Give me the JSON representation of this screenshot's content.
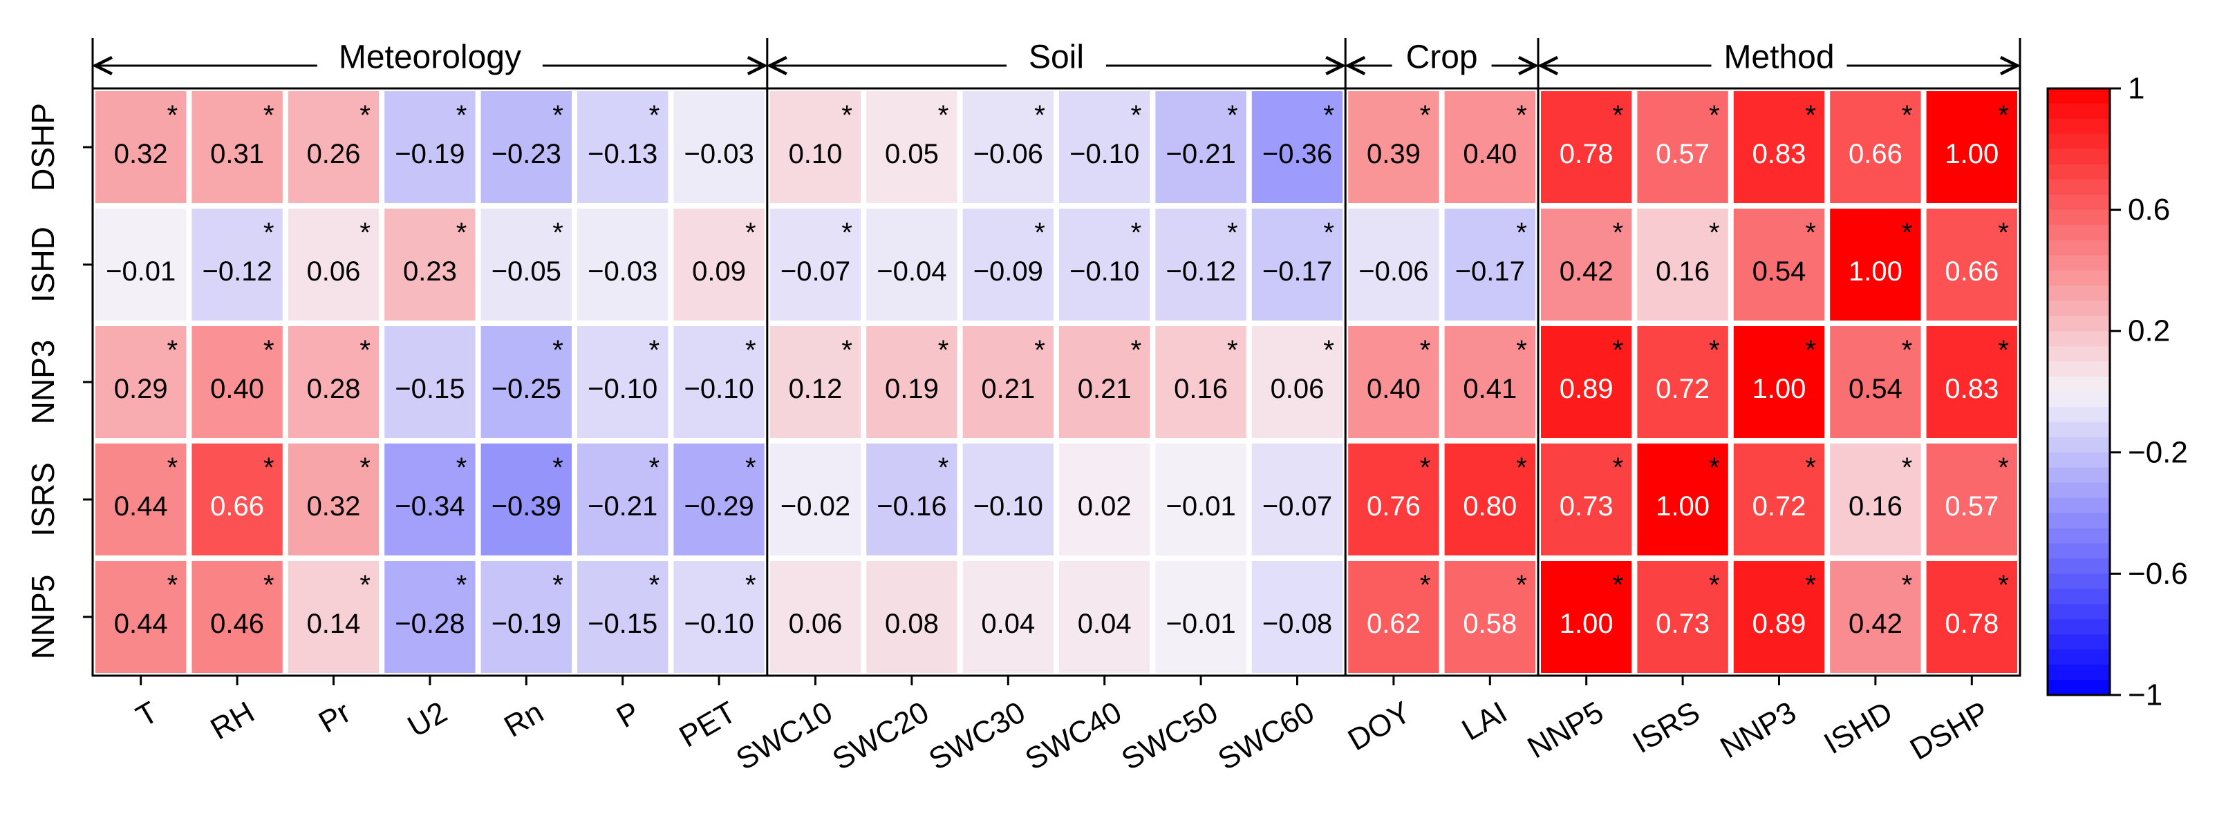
{
  "chart_data": {
    "type": "heatmap",
    "title": "",
    "rows": [
      "DSHP",
      "ISHD",
      "NNP3",
      "ISRS",
      "NNP5"
    ],
    "columns": [
      "T",
      "RH",
      "Pr",
      "U2",
      "Rn",
      "P",
      "PET",
      "SWC10",
      "SWC20",
      "SWC30",
      "SWC40",
      "SWC50",
      "SWC60",
      "DOY",
      "LAI",
      "NNP5",
      "ISRS",
      "NNP3",
      "ISHD",
      "DSHP"
    ],
    "groups": [
      {
        "label": "Meteorology",
        "start": 0,
        "end": 6
      },
      {
        "label": "Soil",
        "start": 7,
        "end": 12
      },
      {
        "label": "Crop",
        "start": 13,
        "end": 14
      },
      {
        "label": "Method",
        "start": 15,
        "end": 19
      }
    ],
    "values": [
      [
        0.32,
        0.31,
        0.26,
        -0.19,
        -0.23,
        -0.13,
        -0.03,
        0.1,
        0.05,
        -0.06,
        -0.1,
        -0.21,
        -0.36,
        0.39,
        0.4,
        0.78,
        0.57,
        0.83,
        0.66,
        1.0
      ],
      [
        -0.01,
        -0.12,
        0.06,
        0.23,
        -0.05,
        -0.03,
        0.09,
        -0.07,
        -0.04,
        -0.09,
        -0.1,
        -0.12,
        -0.17,
        -0.06,
        -0.17,
        0.42,
        0.16,
        0.54,
        1.0,
        0.66
      ],
      [
        0.29,
        0.4,
        0.28,
        -0.15,
        -0.25,
        -0.1,
        -0.1,
        0.12,
        0.19,
        0.21,
        0.21,
        0.16,
        0.06,
        0.4,
        0.41,
        0.89,
        0.72,
        1.0,
        0.54,
        0.83
      ],
      [
        0.44,
        0.66,
        0.32,
        -0.34,
        -0.39,
        -0.21,
        -0.29,
        -0.02,
        -0.16,
        -0.1,
        0.02,
        -0.01,
        -0.07,
        0.76,
        0.8,
        0.73,
        1.0,
        0.72,
        0.16,
        0.57
      ],
      [
        0.44,
        0.46,
        0.14,
        -0.28,
        -0.19,
        -0.15,
        -0.1,
        0.06,
        0.08,
        0.04,
        0.04,
        -0.01,
        -0.08,
        0.62,
        0.58,
        1.0,
        0.73,
        0.89,
        0.42,
        0.78
      ]
    ],
    "labels": [
      [
        "0.32",
        "0.31",
        "0.26",
        "−0.19",
        "−0.23",
        "−0.13",
        "−0.03",
        "0.10",
        "0.05",
        "−0.06",
        "−0.10",
        "−0.21",
        "−0.36",
        "0.39",
        "0.40",
        "0.78",
        "0.57",
        "0.83",
        "0.66",
        "1.00"
      ],
      [
        "−0.01",
        "−0.12",
        "0.06",
        "0.23",
        "−0.05",
        "−0.03",
        "0.09",
        "−0.07",
        "−0.04",
        "−0.09",
        "−0.10",
        "−0.12",
        "−0.17",
        "−0.06",
        "−0.17",
        "0.42",
        "0.16",
        "0.54",
        "1.00",
        "0.66"
      ],
      [
        "0.29",
        "0.40",
        "0.28",
        "−0.15",
        "−0.25",
        "−0.10",
        "−0.10",
        "0.12",
        "0.19",
        "0.21",
        "0.21",
        "0.16",
        "0.06",
        "0.40",
        "0.41",
        "0.89",
        "0.72",
        "1.00",
        "0.54",
        "0.83"
      ],
      [
        "0.44",
        "0.66",
        "0.32",
        "−0.34",
        "−0.39",
        "−0.21",
        "−0.29",
        "−0.02",
        "−0.16",
        "−0.10",
        "0.02",
        "−0.01",
        "−0.07",
        "0.76",
        "0.80",
        "0.73",
        "1.00",
        "0.72",
        "0.16",
        "0.57"
      ],
      [
        "0.44",
        "0.46",
        "0.14",
        "−0.28",
        "−0.19",
        "−0.15",
        "−0.10",
        "0.06",
        "0.08",
        "0.04",
        "0.04",
        "−0.01",
        "−0.08",
        "0.62",
        "0.58",
        "1.00",
        "0.73",
        "0.89",
        "0.42",
        "0.78"
      ]
    ],
    "significant": [
      [
        1,
        1,
        1,
        1,
        1,
        1,
        0,
        1,
        1,
        1,
        1,
        1,
        1,
        1,
        1,
        1,
        1,
        1,
        1,
        1
      ],
      [
        0,
        1,
        1,
        1,
        1,
        0,
        1,
        1,
        0,
        1,
        1,
        1,
        1,
        0,
        1,
        1,
        1,
        1,
        1,
        1
      ],
      [
        1,
        1,
        1,
        0,
        1,
        1,
        1,
        1,
        1,
        1,
        1,
        1,
        1,
        1,
        1,
        1,
        1,
        1,
        1,
        1
      ],
      [
        1,
        1,
        1,
        1,
        1,
        1,
        1,
        0,
        1,
        0,
        0,
        0,
        0,
        1,
        1,
        1,
        1,
        1,
        1,
        1
      ],
      [
        1,
        1,
        1,
        1,
        1,
        1,
        1,
        0,
        0,
        0,
        0,
        0,
        0,
        1,
        1,
        1,
        1,
        1,
        1,
        1
      ]
    ],
    "significance_marker": "*",
    "colorbar": {
      "min": -1,
      "max": 1,
      "ticks": [
        "1",
        "0.6",
        "0.2",
        "−0.2",
        "−0.6",
        "−1"
      ],
      "tick_values": [
        1,
        0.6,
        0.2,
        -0.2,
        -0.6,
        -1
      ]
    },
    "colors": {
      "negative": "#0000ff",
      "neutral": "#f5f2f8",
      "positive": "#ff0000",
      "frame": "#000000"
    }
  }
}
